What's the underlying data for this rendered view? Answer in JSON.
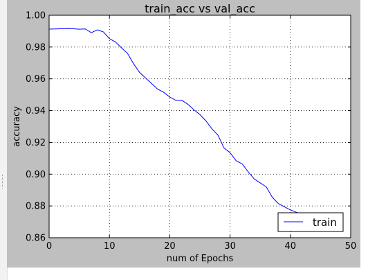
{
  "chart_data": {
    "type": "line",
    "title": "train_acc vs val_acc",
    "xlabel": "num of Epochs",
    "ylabel": "accuracy",
    "xlim": [
      0,
      50
    ],
    "ylim": [
      0.86,
      1.0
    ],
    "x_ticks": [
      "0",
      "10",
      "20",
      "30",
      "40",
      "50"
    ],
    "y_ticks": [
      "0.86",
      "0.88",
      "0.90",
      "0.92",
      "0.94",
      "0.96",
      "0.98",
      "1.00"
    ],
    "grid": true,
    "legend_position": "lower-right",
    "series": [
      {
        "name": "train",
        "color": "#0000ff",
        "x": [
          0,
          1,
          2,
          3,
          4,
          5,
          6,
          7,
          8,
          9,
          10,
          11,
          12,
          13,
          14,
          15,
          16,
          17,
          18,
          19,
          20,
          21,
          22,
          23,
          24,
          25,
          26,
          27,
          28,
          29,
          30,
          31,
          32,
          33,
          34,
          35,
          36,
          37,
          38,
          39,
          40,
          41,
          42,
          43,
          44
        ],
        "values": [
          0.9913,
          0.9914,
          0.9915,
          0.9916,
          0.9915,
          0.9912,
          0.9914,
          0.989,
          0.9908,
          0.9895,
          0.9853,
          0.9832,
          0.9795,
          0.976,
          0.9695,
          0.964,
          0.9605,
          0.957,
          0.9535,
          0.9515,
          0.9485,
          0.9465,
          0.9465,
          0.944,
          0.9405,
          0.9375,
          0.9335,
          0.9285,
          0.9245,
          0.9165,
          0.9135,
          0.9085,
          0.9065,
          0.9015,
          0.897,
          0.8945,
          0.892,
          0.8855,
          0.8815,
          0.8795,
          0.8775,
          0.876,
          0.8748,
          0.8742,
          0.874
        ]
      }
    ]
  }
}
